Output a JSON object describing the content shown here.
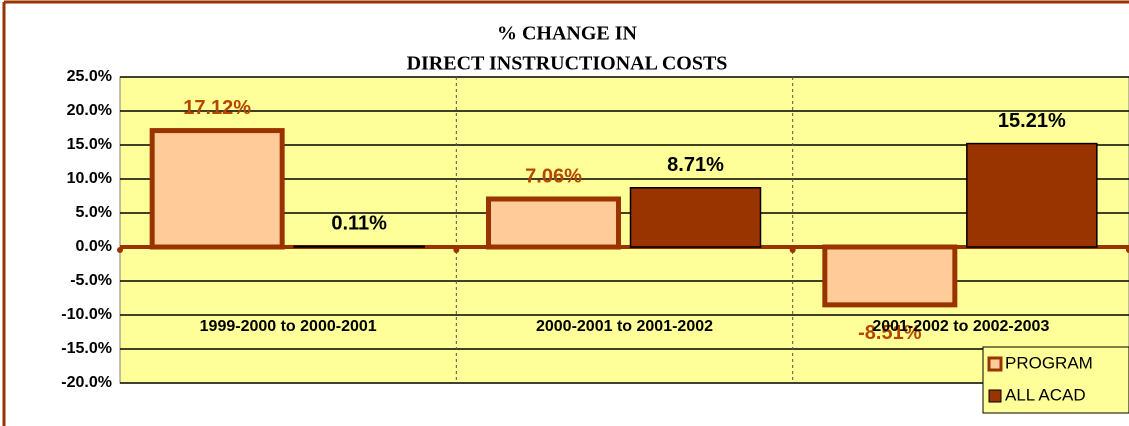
{
  "chart_data": {
    "type": "bar",
    "title": [
      "% CHANGE IN",
      "DIRECT INSTRUCTIONAL COSTS"
    ],
    "categories": [
      "1999-2000 to 2000-2001",
      "2000-2001 to 2001-2002",
      "2001-2002 to 2002-2003"
    ],
    "series": [
      {
        "name": "PROGRAM",
        "color": "#FFCC99",
        "values": [
          17.12,
          7.06,
          -8.51
        ],
        "value_labels": [
          "17.12%",
          "7.06%",
          "-8.51%"
        ]
      },
      {
        "name": "ALL ACAD",
        "color": "#993300",
        "values": [
          0.11,
          8.71,
          15.21
        ],
        "value_labels": [
          "0.11%",
          "8.71%",
          "15.21%"
        ]
      }
    ],
    "ylim": [
      -20,
      25
    ],
    "yticks": [
      {
        "value": 25,
        "label": "25.0%"
      },
      {
        "value": 20,
        "label": "20.0%"
      },
      {
        "value": 15,
        "label": "15.0%"
      },
      {
        "value": 10,
        "label": "10.0%"
      },
      {
        "value": 5,
        "label": "5.0%"
      },
      {
        "value": 0,
        "label": "0.0%"
      },
      {
        "value": -5,
        "label": "-5.0%"
      },
      {
        "value": -10,
        "label": "-10.0%"
      },
      {
        "value": -15,
        "label": "-15.0%"
      },
      {
        "value": -20,
        "label": "-20.0%"
      }
    ],
    "grid": true,
    "legend": "lower right"
  }
}
